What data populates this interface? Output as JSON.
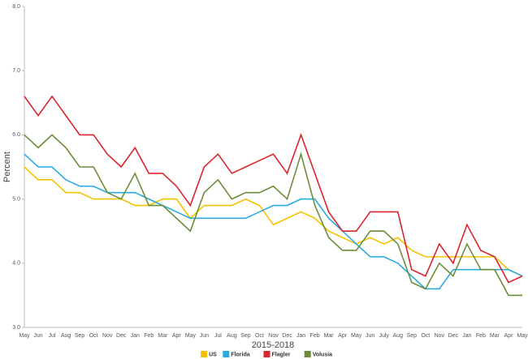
{
  "chart_data": {
    "type": "line",
    "x_label": "2015-2018",
    "y_label": "Percent",
    "categories": [
      "May",
      "Jun",
      "Jul",
      "Aug",
      "Sep",
      "Oct",
      "Nov",
      "Dec",
      "Jan",
      "Feb",
      "Mar",
      "Apr",
      "May",
      "Jun",
      "Jul",
      "Aug",
      "Sep",
      "Oct",
      "Nov",
      "Dec",
      "Jan",
      "Feb",
      "Mar",
      "Apr",
      "May",
      "Jun",
      "July",
      "Aug",
      "Sep",
      "Oct",
      "Nov",
      "Dec",
      "Jan",
      "Feb",
      "Mar",
      "Apr",
      "May"
    ],
    "ylim": [
      3,
      8
    ],
    "yticks": [
      {
        "value": 3,
        "label": "3.0"
      },
      {
        "value": 4,
        "label": "4.0"
      },
      {
        "value": 5,
        "label": "5.0"
      },
      {
        "value": 6,
        "label": "6.0"
      },
      {
        "value": 7,
        "label": "7.0"
      },
      {
        "value": 8,
        "label": "8.0"
      }
    ],
    "grid": false,
    "legend": "bottom",
    "series": [
      {
        "name": "US",
        "color": "#f5c200",
        "values": [
          5.5,
          5.3,
          5.3,
          5.1,
          5.1,
          5.0,
          5.0,
          5.0,
          4.9,
          4.9,
          5.0,
          5.0,
          4.7,
          4.9,
          4.9,
          4.9,
          5.0,
          4.9,
          4.6,
          4.7,
          4.8,
          4.7,
          4.5,
          4.4,
          4.3,
          4.4,
          4.3,
          4.4,
          4.2,
          4.1,
          4.1,
          4.1,
          4.1,
          4.1,
          4.1,
          3.9,
          3.8
        ]
      },
      {
        "name": "Florida",
        "color": "#29abe2",
        "values": [
          5.7,
          5.5,
          5.5,
          5.3,
          5.2,
          5.2,
          5.1,
          5.1,
          5.1,
          5.0,
          4.9,
          4.8,
          4.7,
          4.7,
          4.7,
          4.7,
          4.7,
          4.8,
          4.9,
          4.9,
          5.0,
          5.0,
          4.7,
          4.5,
          4.3,
          4.1,
          4.1,
          4.0,
          3.8,
          3.6,
          3.6,
          3.9,
          3.9,
          3.9,
          3.9,
          3.9,
          3.8
        ]
      },
      {
        "name": "Flagler",
        "color": "#d9262c",
        "values": [
          6.6,
          6.3,
          6.6,
          6.3,
          6.0,
          6.0,
          5.7,
          5.5,
          5.8,
          5.4,
          5.4,
          5.2,
          4.9,
          5.5,
          5.7,
          5.4,
          5.5,
          5.6,
          5.7,
          5.4,
          6.0,
          5.4,
          4.8,
          4.5,
          4.5,
          4.8,
          4.8,
          4.8,
          3.9,
          3.8,
          4.3,
          4.0,
          4.6,
          4.2,
          4.1,
          3.7,
          3.8
        ]
      },
      {
        "name": "Volusia",
        "color": "#6b8e3a",
        "values": [
          6.0,
          5.8,
          6.0,
          5.8,
          5.5,
          5.5,
          5.1,
          5.0,
          5.4,
          4.9,
          4.9,
          4.7,
          4.5,
          5.1,
          5.3,
          5.0,
          5.1,
          5.1,
          5.2,
          5.0,
          5.7,
          4.9,
          4.4,
          4.2,
          4.2,
          4.5,
          4.5,
          4.3,
          3.7,
          3.6,
          4.0,
          3.8,
          4.3,
          3.9,
          3.9,
          3.5,
          3.5
        ]
      }
    ]
  }
}
